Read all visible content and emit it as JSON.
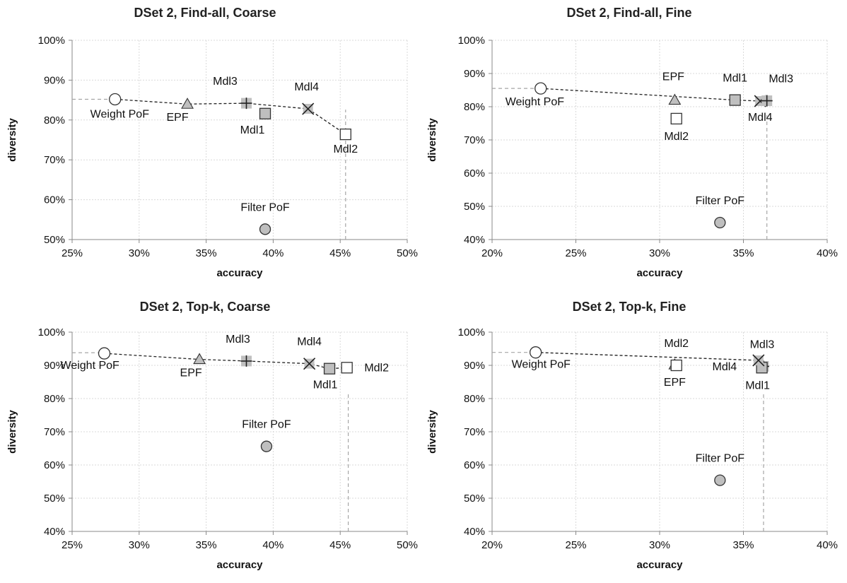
{
  "chart_data": [
    {
      "type": "scatter",
      "title": "DSet 2, Find-all, Coarse",
      "xlabel": "accuracy",
      "ylabel": "diversity",
      "xlim": [
        0.25,
        0.5
      ],
      "ylim": [
        0.5,
        1.0
      ],
      "xticks": [
        "25%",
        "30%",
        "35%",
        "40%",
        "45%",
        "50%"
      ],
      "yticks": [
        "50%",
        "60%",
        "70%",
        "80%",
        "90%",
        "100%"
      ],
      "grid": "dotted",
      "points": [
        {
          "label": "Weight PoF",
          "marker": "circle-open",
          "x": 0.282,
          "y": 0.852
        },
        {
          "label": "EPF",
          "marker": "triangle",
          "x": 0.336,
          "y": 0.84
        },
        {
          "label": "Mdl3",
          "marker": "plus",
          "x": 0.38,
          "y": 0.842
        },
        {
          "label": "Mdl1",
          "marker": "square-filled",
          "x": 0.394,
          "y": 0.816
        },
        {
          "label": "Mdl4",
          "marker": "x",
          "x": 0.426,
          "y": 0.828
        },
        {
          "label": "Mdl2",
          "marker": "square-open",
          "x": 0.454,
          "y": 0.764
        },
        {
          "label": "Filter PoF",
          "marker": "circle-filled",
          "x": 0.394,
          "y": 0.526
        }
      ],
      "frontier": [
        "Weight PoF",
        "EPF",
        "Mdl3",
        "Mdl4",
        "Mdl2"
      ],
      "reference_x": 0.454,
      "reference_y": 0.852
    },
    {
      "type": "scatter",
      "title": "DSet 2, Find-all, Fine",
      "xlabel": "accuracy",
      "ylabel": "diversity",
      "xlim": [
        0.2,
        0.4
      ],
      "ylim": [
        0.4,
        1.0
      ],
      "xticks": [
        "20%",
        "25%",
        "30%",
        "35%",
        "40%"
      ],
      "yticks": [
        "40%",
        "50%",
        "60%",
        "70%",
        "80%",
        "90%",
        "100%"
      ],
      "grid": "dotted",
      "points": [
        {
          "label": "Weight PoF",
          "marker": "circle-open",
          "x": 0.229,
          "y": 0.855
        },
        {
          "label": "EPF",
          "marker": "triangle",
          "x": 0.309,
          "y": 0.82
        },
        {
          "label": "Mdl2",
          "marker": "square-open",
          "x": 0.31,
          "y": 0.764
        },
        {
          "label": "Mdl1",
          "marker": "square-filled",
          "x": 0.345,
          "y": 0.82
        },
        {
          "label": "Mdl4",
          "marker": "x",
          "x": 0.36,
          "y": 0.817
        },
        {
          "label": "Mdl3",
          "marker": "plus",
          "x": 0.364,
          "y": 0.818
        },
        {
          "label": "Filter PoF",
          "marker": "circle-filled",
          "x": 0.336,
          "y": 0.451
        }
      ],
      "frontier": [
        "Weight PoF",
        "Mdl1",
        "Mdl4",
        "Mdl3"
      ],
      "reference_x": 0.364,
      "reference_y": 0.855
    },
    {
      "type": "scatter",
      "title": "DSet 2, Top-k, Coarse",
      "xlabel": "accuracy",
      "ylabel": "diversity",
      "xlim": [
        0.25,
        0.5
      ],
      "ylim": [
        0.4,
        1.0
      ],
      "xticks": [
        "25%",
        "30%",
        "35%",
        "40%",
        "45%",
        "50%"
      ],
      "yticks": [
        "40%",
        "50%",
        "60%",
        "70%",
        "80%",
        "90%",
        "100%"
      ],
      "grid": "dotted",
      "points": [
        {
          "label": "Weight PoF",
          "marker": "circle-open",
          "x": 0.274,
          "y": 0.936
        },
        {
          "label": "EPF",
          "marker": "triangle",
          "x": 0.345,
          "y": 0.918
        },
        {
          "label": "Mdl3",
          "marker": "plus",
          "x": 0.38,
          "y": 0.913
        },
        {
          "label": "Mdl4",
          "marker": "x",
          "x": 0.427,
          "y": 0.905
        },
        {
          "label": "Mdl1",
          "marker": "square-filled",
          "x": 0.442,
          "y": 0.89
        },
        {
          "label": "Mdl2",
          "marker": "square-open",
          "x": 0.455,
          "y": 0.893
        },
        {
          "label": "Filter PoF",
          "marker": "circle-filled",
          "x": 0.395,
          "y": 0.656
        }
      ],
      "frontier": [
        "Weight PoF",
        "EPF",
        "Mdl3",
        "Mdl4",
        "Mdl1",
        "Mdl2"
      ],
      "reference_x": 0.456,
      "reference_y": 0.938
    },
    {
      "type": "scatter",
      "title": "DSet 2, Top-k, Fine",
      "xlabel": "accuracy",
      "ylabel": "diversity",
      "xlim": [
        0.2,
        0.4
      ],
      "ylim": [
        0.4,
        1.0
      ],
      "xticks": [
        "20%",
        "25%",
        "30%",
        "35%",
        "40%"
      ],
      "yticks": [
        "40%",
        "50%",
        "60%",
        "70%",
        "80%",
        "90%",
        "100%"
      ],
      "grid": "dotted",
      "points": [
        {
          "label": "Weight PoF",
          "marker": "circle-open",
          "x": 0.226,
          "y": 0.939
        },
        {
          "label": "EPF",
          "marker": "triangle",
          "x": 0.309,
          "y": 0.902
        },
        {
          "label": "Mdl2",
          "marker": "square-open",
          "x": 0.31,
          "y": 0.9
        },
        {
          "label": "Mdl3",
          "marker": "plus",
          "x": 0.362,
          "y": 0.897
        },
        {
          "label": "Mdl1",
          "marker": "square-filled",
          "x": 0.361,
          "y": 0.893
        },
        {
          "label": "Mdl4",
          "marker": "x",
          "x": 0.359,
          "y": 0.915
        },
        {
          "label": "Filter PoF",
          "marker": "circle-filled",
          "x": 0.336,
          "y": 0.554
        }
      ],
      "frontier": [
        "Weight PoF",
        "Mdl4"
      ],
      "reference_x": 0.362,
      "reference_y": 0.939
    }
  ],
  "colors": {
    "marker_fill": "#bfbfbf",
    "marker_open_fill": "#ffffff",
    "marker_stroke": "#333333",
    "frontier_line": "#222222",
    "reference_line": "#a6a6a6",
    "grid": "#d9d9d9",
    "axis": "#888888"
  }
}
